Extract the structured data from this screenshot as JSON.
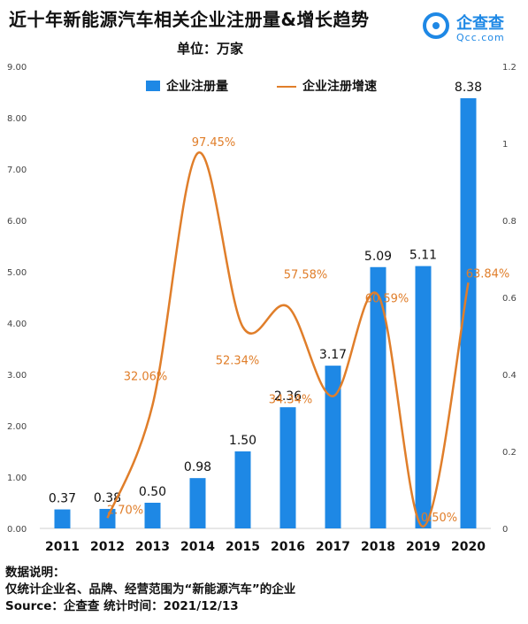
{
  "header": {
    "title": "近十年新能源汽车相关企业注册量&增长趋势",
    "unit": "单位：万家"
  },
  "logo": {
    "name": "企查查",
    "domain": "Qcc.com"
  },
  "chart_data": {
    "type": "bar+line",
    "categories": [
      "2011",
      "2012",
      "2013",
      "2014",
      "2015",
      "2016",
      "2017",
      "2018",
      "2019",
      "2020"
    ],
    "series": [
      {
        "name": "企业注册量",
        "kind": "bar",
        "axis": "left",
        "values": [
          0.37,
          0.38,
          0.5,
          0.98,
          1.5,
          2.36,
          3.17,
          5.09,
          5.11,
          8.38
        ],
        "labels": [
          "0.37",
          "0.38",
          "0.50",
          "0.98",
          "1.50",
          "2.36",
          "3.17",
          "5.09",
          "5.11",
          "8.38"
        ]
      },
      {
        "name": "企业注册增速",
        "kind": "line",
        "axis": "right",
        "values": [
          null,
          0.027,
          0.3206,
          0.9745,
          0.5234,
          0.5758,
          0.3434,
          0.6059,
          0.005,
          0.6384
        ],
        "labels": [
          "",
          "2.70%",
          "32.06%",
          "97.45%",
          "52.34%",
          "57.58%",
          "34.34%",
          "60.59%",
          "0.50%",
          "63.84%"
        ]
      }
    ],
    "y_left": {
      "ticks": [
        "0.00",
        "1.00",
        "2.00",
        "3.00",
        "4.00",
        "5.00",
        "6.00",
        "7.00",
        "8.00",
        "9.00"
      ],
      "ylim": [
        0,
        9
      ]
    },
    "y_right": {
      "ticks": [
        "0",
        "0.2",
        "0.4",
        "0.6",
        "0.8",
        "1",
        "1.2"
      ],
      "ylim": [
        0,
        1.2
      ]
    },
    "legend_position": "top",
    "colors": {
      "bar": "#1e88e5",
      "line": "#e07e2a"
    }
  },
  "notes": {
    "heading": "数据说明：",
    "line1": "仅统计企业名、品牌、经营范围为“新能源汽车”的企业",
    "source": "Source：企查查    统计时间：2021/12/13"
  }
}
